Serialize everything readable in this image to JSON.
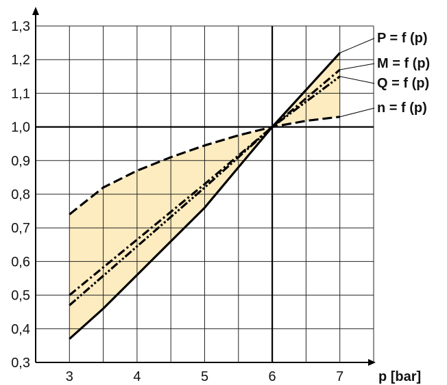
{
  "chart_data": {
    "type": "line",
    "title": "",
    "xlabel": "p [bar]",
    "ylabel": "",
    "xlim": [
      2.5,
      7.5
    ],
    "ylim": [
      0.3,
      1.3
    ],
    "x_ticks": [
      "3",
      "4",
      "5",
      "6",
      "7"
    ],
    "y_ticks": [
      "0,3",
      "0,4",
      "0,5",
      "0,6",
      "0,7",
      "0,8",
      "0,9",
      "1,0",
      "1,1",
      "1,2",
      "1,3"
    ],
    "grid": true,
    "reference_lines": {
      "x": 6,
      "y": 1.0
    },
    "shaded_band": {
      "color": "#fdecc0",
      "between": [
        "n = f (p)",
        "P = f (p)"
      ]
    },
    "series": [
      {
        "name": "P = f (p)",
        "style": "solid",
        "x": [
          3,
          3.5,
          4,
          4.5,
          5,
          5.5,
          6,
          6.5,
          7
        ],
        "y": [
          0.37,
          0.46,
          0.56,
          0.66,
          0.76,
          0.88,
          1.0,
          1.11,
          1.22
        ]
      },
      {
        "name": "M = f (p)",
        "style": "dash-dot",
        "x": [
          3,
          4,
          5,
          6,
          7
        ],
        "y": [
          0.5,
          0.665,
          0.83,
          1.0,
          1.17
        ]
      },
      {
        "name": "Q = f (p)",
        "style": "dash-dot-dot",
        "x": [
          3,
          4,
          5,
          6,
          7
        ],
        "y": [
          0.47,
          0.645,
          0.82,
          1.0,
          1.15
        ]
      },
      {
        "name": "n = f (p)",
        "style": "dashed",
        "x": [
          3,
          3.5,
          4,
          4.5,
          5,
          5.5,
          6,
          6.5,
          7
        ],
        "y": [
          0.74,
          0.82,
          0.87,
          0.91,
          0.945,
          0.975,
          1.0,
          1.018,
          1.03
        ]
      }
    ]
  }
}
